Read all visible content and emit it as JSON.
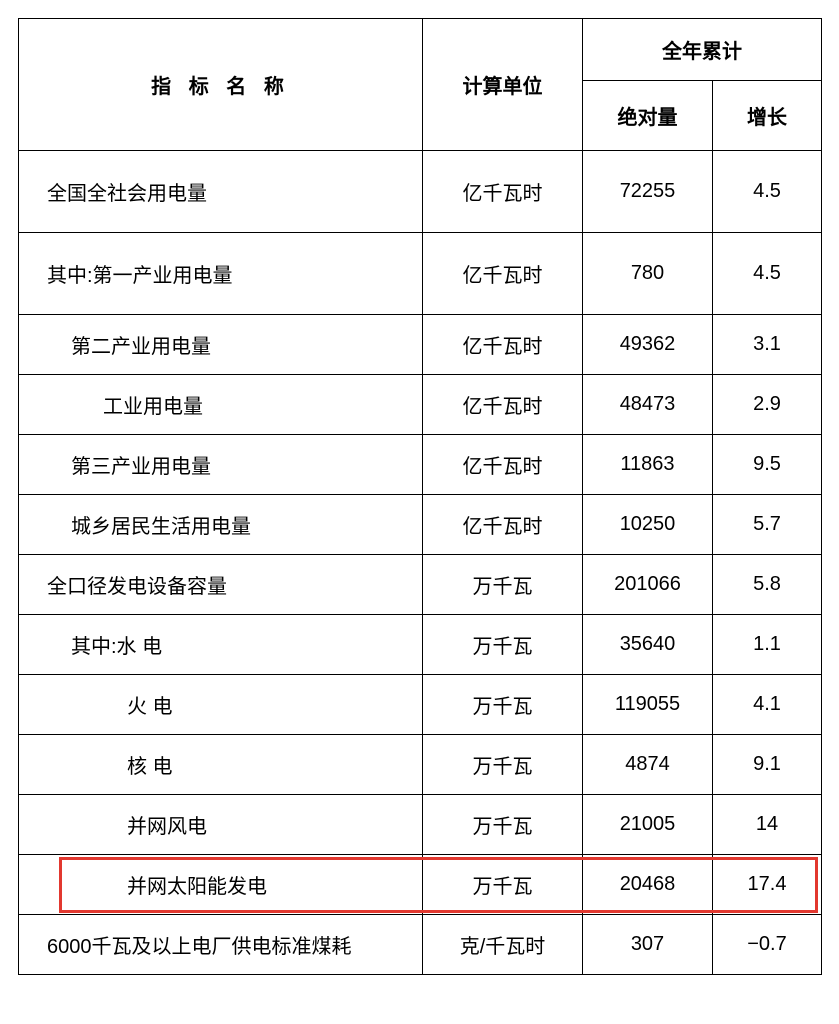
{
  "header": {
    "name_label": "指 标 名 称",
    "unit_label": "计算单位",
    "cumulative_label": "全年累计",
    "absolute_label": "绝对量",
    "growth_label": "增长"
  },
  "rows": [
    {
      "name": "全国全社会用电量",
      "indent": 1,
      "unit": "亿千瓦时",
      "abs": "72255",
      "grow": "4.5",
      "tall": true
    },
    {
      "name": "其中:第一产业用电量",
      "indent": 1,
      "unit": "亿千瓦时",
      "abs": "780",
      "grow": "4.5",
      "tall": true
    },
    {
      "name": "第二产业用电量",
      "indent": 2,
      "unit": "亿千瓦时",
      "abs": "49362",
      "grow": "3.1",
      "tall": false
    },
    {
      "name": "工业用电量",
      "indent": 3,
      "unit": "亿千瓦时",
      "abs": "48473",
      "grow": "2.9",
      "tall": false
    },
    {
      "name": "第三产业用电量",
      "indent": 2,
      "unit": "亿千瓦时",
      "abs": "11863",
      "grow": "9.5",
      "tall": false
    },
    {
      "name": "城乡居民生活用电量",
      "indent": 2,
      "unit": "亿千瓦时",
      "abs": "10250",
      "grow": "5.7",
      "tall": false
    },
    {
      "name": "全口径发电设备容量",
      "indent": 1,
      "unit": "万千瓦",
      "abs": "201066",
      "grow": "5.8",
      "tall": false
    },
    {
      "name": "其中:水 电",
      "indent": 2,
      "unit": "万千瓦",
      "abs": "35640",
      "grow": "1.1",
      "tall": false
    },
    {
      "name": "火 电",
      "indent": 4,
      "unit": "万千瓦",
      "abs": "119055",
      "grow": "4.1",
      "tall": false
    },
    {
      "name": "核 电",
      "indent": 4,
      "unit": "万千瓦",
      "abs": "4874",
      "grow": "9.1",
      "tall": false
    },
    {
      "name": "并网风电",
      "indent": 4,
      "unit": "万千瓦",
      "abs": "21005",
      "grow": "14",
      "tall": false
    },
    {
      "name": "并网太阳能发电",
      "indent": 4,
      "unit": "万千瓦",
      "abs": "20468",
      "grow": "17.4",
      "tall": false,
      "highlight": true
    },
    {
      "name": "6000千瓦及以上电厂供电标准煤耗",
      "indent": 1,
      "unit": "克/千瓦时",
      "abs": "307",
      "grow": "−0.7",
      "tall": false
    }
  ],
  "style": {
    "border_color": "#000000",
    "highlight_color": "#e2382f",
    "font_size_pt": 15,
    "header_font_weight": 700,
    "body_font_weight": 400,
    "background": "#ffffff"
  }
}
